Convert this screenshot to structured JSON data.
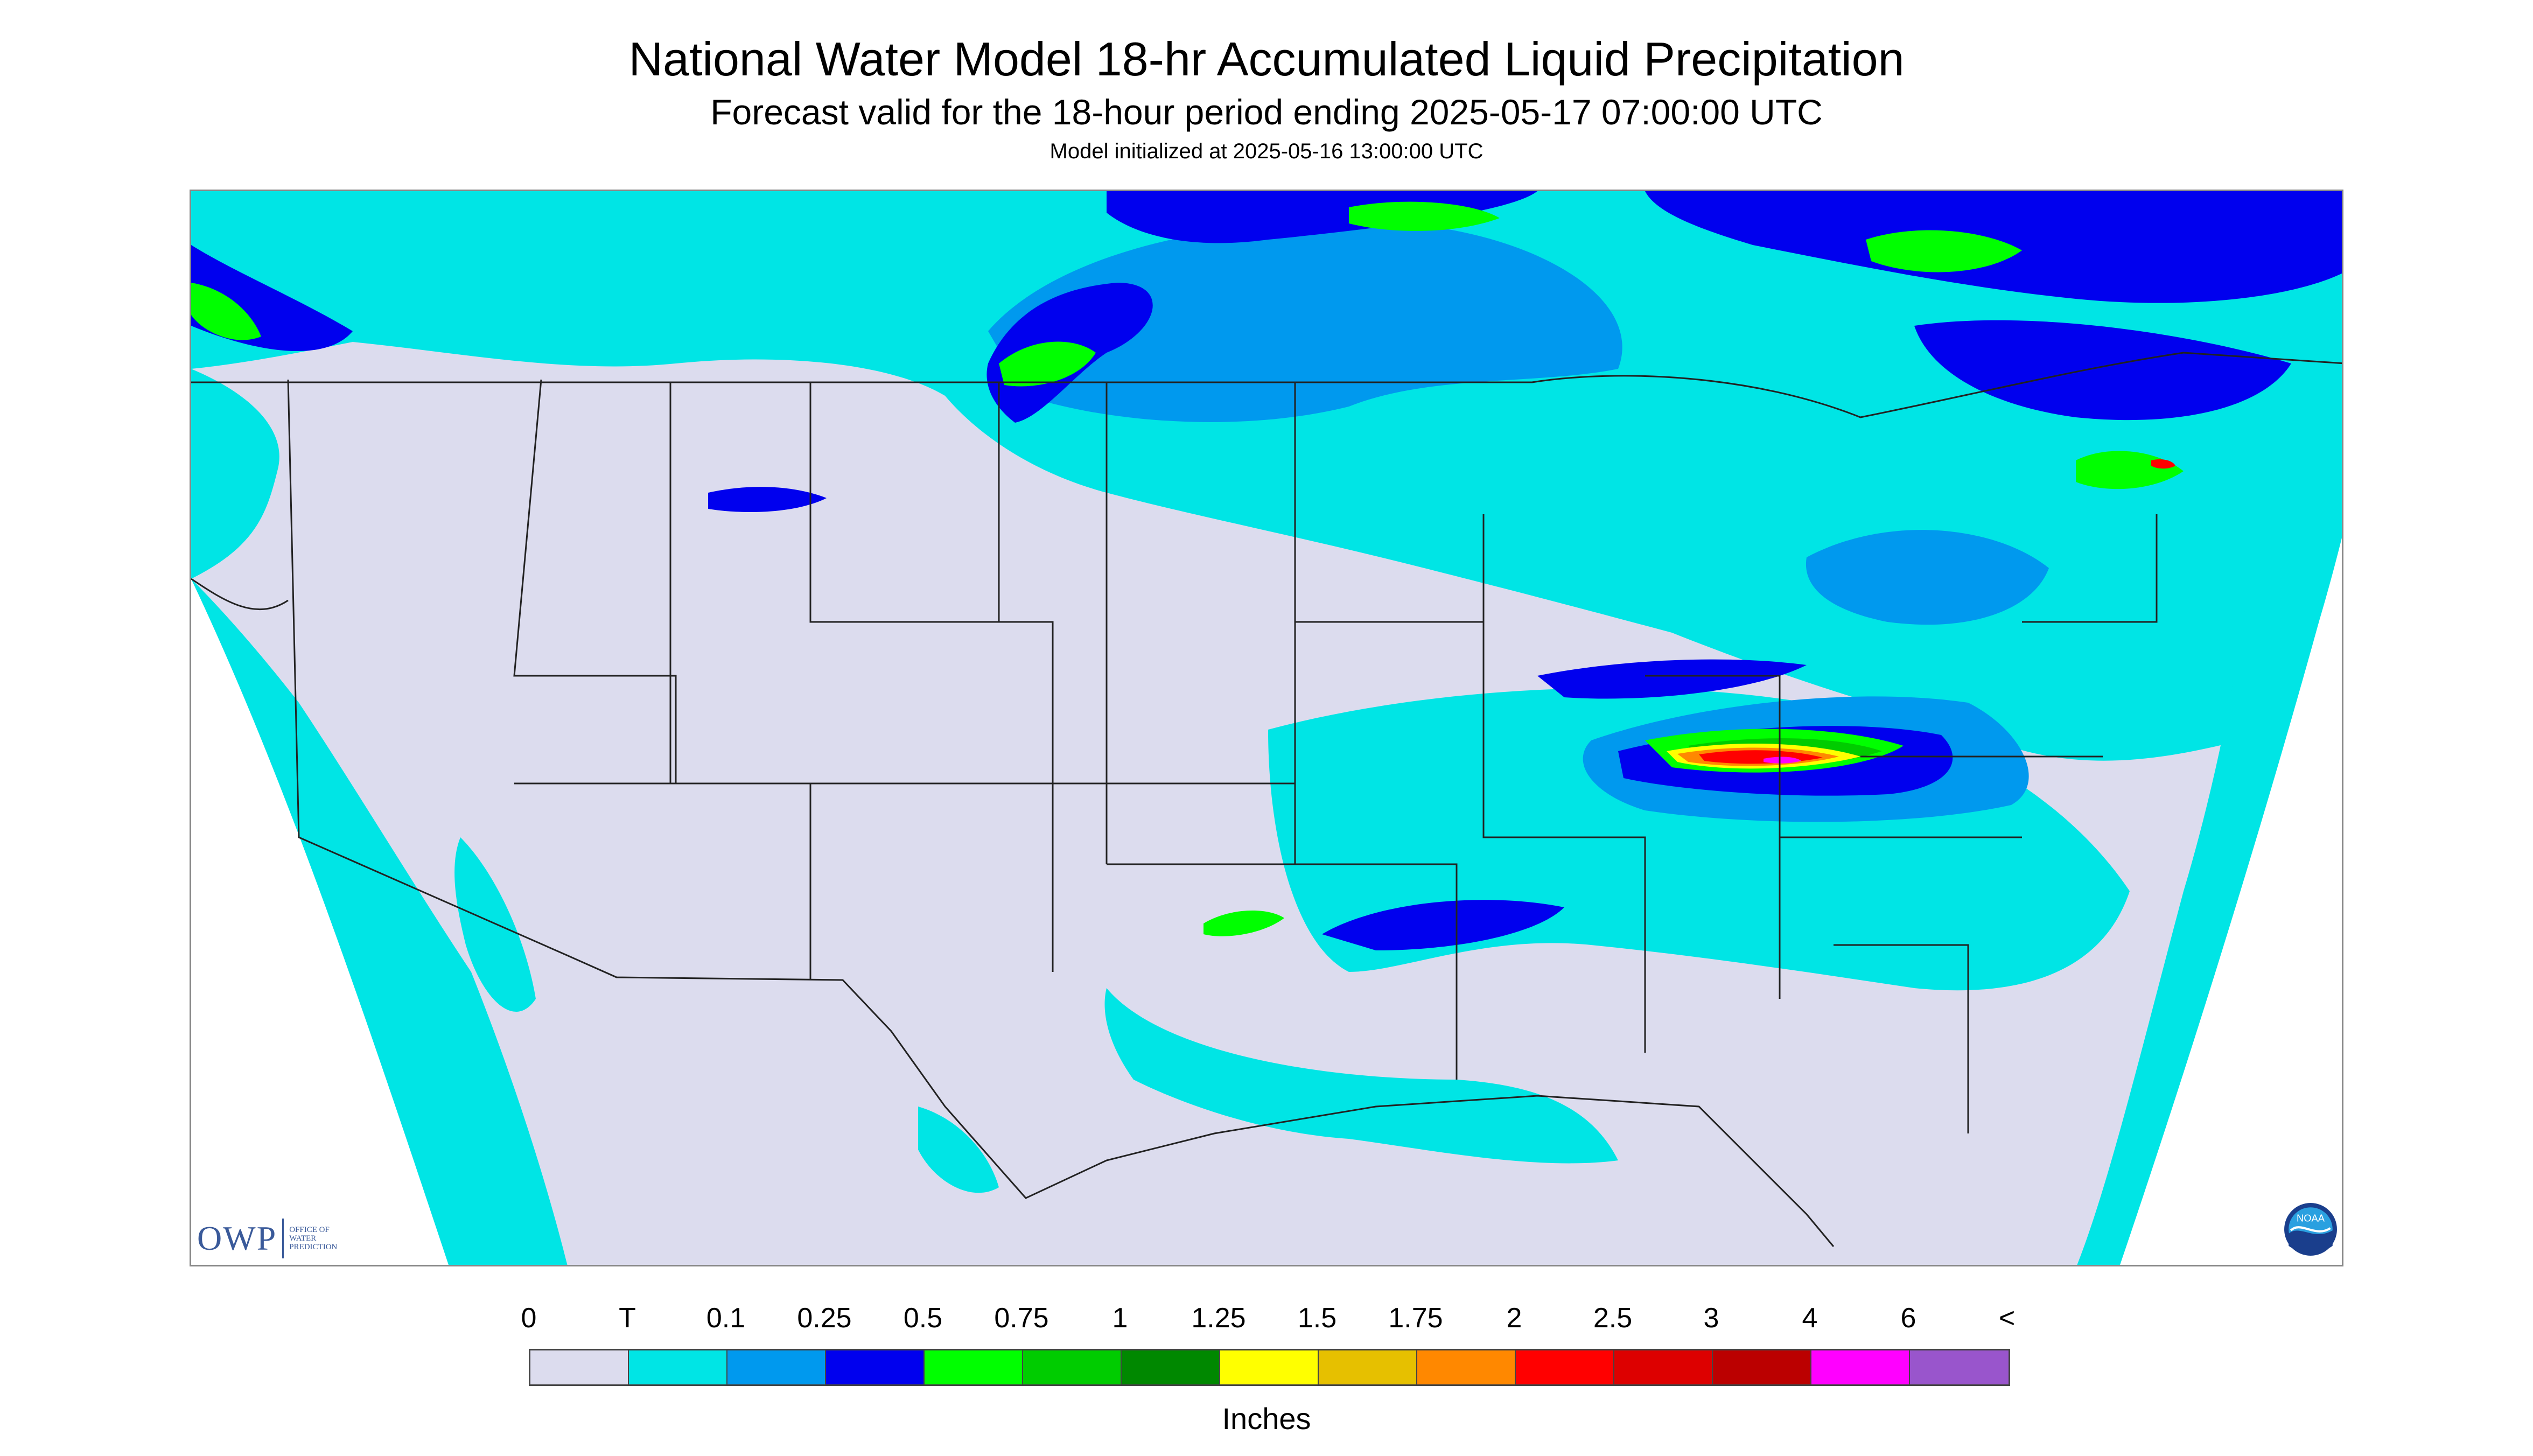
{
  "title": "National Water Model 18-hr Accumulated Liquid Precipitation",
  "subtitle": "Forecast valid for the 18-hour period ending 2025-05-17 07:00:00 UTC",
  "init": "Model initialized at 2025-05-16 13:00:00 UTC",
  "owp_logo": {
    "mark": "OWP",
    "line1": "OFFICE OF",
    "line2": "WATER",
    "line3": "PREDICTION"
  },
  "noaa_logo": {
    "text": "NOAA"
  },
  "legend": {
    "units": "Inches",
    "labels": [
      "0",
      "T",
      "0.1",
      "0.25",
      "0.5",
      "0.75",
      "1",
      "1.25",
      "1.5",
      "1.75",
      "2",
      "2.5",
      "3",
      "4",
      "6",
      "<"
    ],
    "colors": [
      "#dcdcee",
      "#00e5e5",
      "#0099ee",
      "#0000ee",
      "#00ff00",
      "#00cc00",
      "#008800",
      "#ffff00",
      "#e6c000",
      "#ff8800",
      "#ff0000",
      "#dd0000",
      "#bb0000",
      "#ff00ff",
      "#9955cc"
    ]
  },
  "map": {
    "region": "CONUS",
    "palette": {
      "none": "#dcdcee",
      "trace": "#00e5e5",
      "light_blue": "#0099ee",
      "blue": "#0000ee",
      "green": "#00ff00",
      "mid_green": "#00cc00",
      "dark_green": "#008800",
      "yellow": "#ffff00",
      "orange": "#ff8800",
      "red": "#ff0000",
      "magenta": "#ff00ff"
    }
  }
}
